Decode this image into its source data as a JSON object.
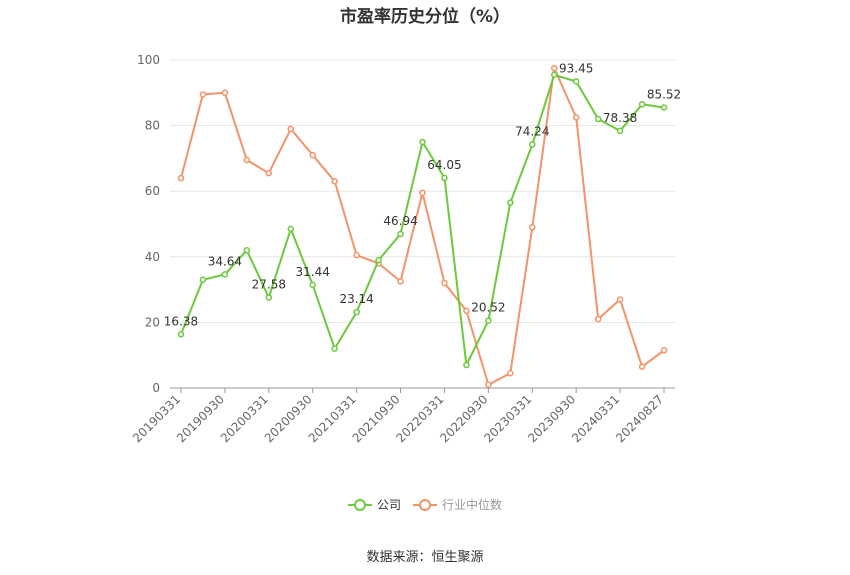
{
  "chart_data": {
    "type": "line",
    "title": "市盈率历史分位（%）",
    "xlabel": "",
    "ylabel": "",
    "ylim": [
      0,
      100
    ],
    "yticks": [
      0,
      20,
      40,
      60,
      80,
      100
    ],
    "x": [
      "20190331",
      "20190630",
      "20190930",
      "20191231",
      "20200331",
      "20200630",
      "20200930",
      "20201231",
      "20210331",
      "20210630",
      "20210930",
      "20211231",
      "20220331",
      "20220630",
      "20220930",
      "20221231",
      "20230331",
      "20230630",
      "20230930",
      "20231231",
      "20240331",
      "20240630",
      "20240827"
    ],
    "xtick_labels": [
      "20190331",
      "20190930",
      "20200331",
      "20200930",
      "20210331",
      "20210930",
      "20220331",
      "20220930",
      "20230331",
      "20230930",
      "20240331",
      "20240827"
    ],
    "series": [
      {
        "name": "公司",
        "color": "#6cc93b",
        "values": [
          16.38,
          33.0,
          34.64,
          42.0,
          27.58,
          48.5,
          31.44,
          12.0,
          23.14,
          39.0,
          46.94,
          75.0,
          64.05,
          7.0,
          20.52,
          56.5,
          74.24,
          95.5,
          93.45,
          82.0,
          78.38,
          86.5,
          85.52
        ],
        "data_labels": [
          {
            "index": 0,
            "text": "16.38"
          },
          {
            "index": 2,
            "text": "34.64"
          },
          {
            "index": 4,
            "text": "27.58"
          },
          {
            "index": 6,
            "text": "31.44"
          },
          {
            "index": 8,
            "text": "23.14"
          },
          {
            "index": 10,
            "text": "46.94"
          },
          {
            "index": 12,
            "text": "64.05"
          },
          {
            "index": 14,
            "text": "20.52"
          },
          {
            "index": 16,
            "text": "74.24"
          },
          {
            "index": 18,
            "text": "93.45"
          },
          {
            "index": 20,
            "text": "78.38"
          },
          {
            "index": 22,
            "text": "85.52"
          }
        ]
      },
      {
        "name": "行业中位数",
        "color": "#f4936a",
        "values": [
          64.0,
          89.5,
          90.0,
          69.5,
          65.5,
          79.0,
          71.0,
          63.0,
          40.5,
          38.0,
          32.5,
          59.5,
          32.0,
          23.5,
          1.0,
          4.5,
          49.0,
          97.5,
          82.5,
          21.0,
          27.0,
          6.5,
          11.5
        ]
      }
    ],
    "grid": true,
    "legend_position": "bottom-center"
  },
  "source_text": "数据来源：恒生聚源"
}
